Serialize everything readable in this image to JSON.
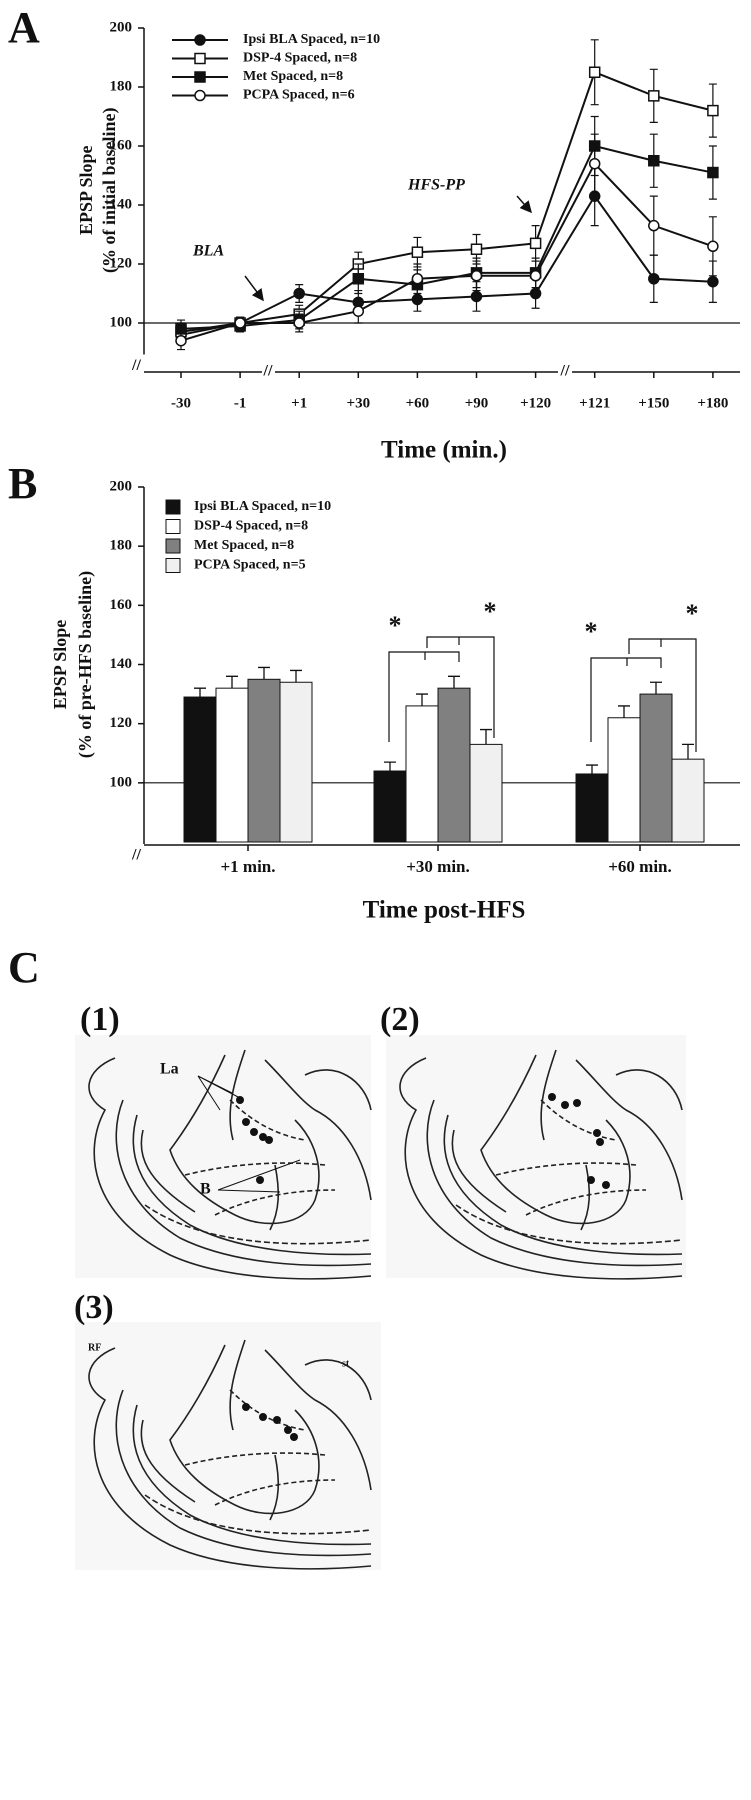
{
  "panels": {
    "a": "A",
    "b": "B",
    "c": "C"
  },
  "chart_data": [
    {
      "type": "line",
      "categories": [
        "-30",
        "-1",
        "+1",
        "+30",
        "+60",
        "+90",
        "+120",
        "+121",
        "+150",
        "+180"
      ],
      "series": [
        {
          "name": "Ipsi BLA Spaced, n=10",
          "color": "#111111",
          "marker": "circle",
          "fill": "#111111",
          "values": [
            96,
            100,
            110,
            107,
            108,
            109,
            110,
            143,
            115,
            114
          ],
          "errors": [
            3,
            2,
            3,
            4,
            4,
            5,
            5,
            10,
            8,
            7
          ]
        },
        {
          "name": "DSP-4 Spaced, n=8",
          "color": "#111111",
          "marker": "square",
          "fill": "#ffffff",
          "values": [
            97,
            100,
            103,
            120,
            124,
            125,
            127,
            185,
            177,
            172
          ],
          "errors": [
            3,
            2,
            3,
            4,
            5,
            5,
            6,
            11,
            9,
            9
          ]
        },
        {
          "name": "Met Spaced, n=8",
          "color": "#111111",
          "marker": "square",
          "fill": "#111111",
          "values": [
            98,
            99,
            101,
            115,
            113,
            117,
            117,
            160,
            155,
            151
          ],
          "errors": [
            3,
            2,
            3,
            5,
            5,
            5,
            5,
            10,
            9,
            9
          ]
        },
        {
          "name": "PCPA Spaced, n=6",
          "color": "#111111",
          "marker": "circle",
          "fill": "#ffffff",
          "values": [
            94,
            100,
            100,
            104,
            115,
            116,
            116,
            154,
            133,
            126
          ],
          "errors": [
            3,
            2,
            3,
            4,
            5,
            5,
            5,
            10,
            10,
            10
          ]
        }
      ],
      "ylim": [
        90,
        200
      ],
      "yticks": [
        100,
        120,
        140,
        160,
        180,
        200
      ],
      "reference_line": 100,
      "ylabel": [
        "EPSP Slope",
        "(% of initial baseline)"
      ],
      "xlabel": "Time (min.)",
      "axis_break": "//",
      "annotations": [
        "BLA",
        "HFS-PP"
      ]
    },
    {
      "type": "bar",
      "categories": [
        "+1 min.",
        "+30 min.",
        "+60 min."
      ],
      "series": [
        {
          "name": "Ipsi BLA Spaced, n=10",
          "color": "#111111",
          "values": [
            129,
            104,
            103
          ],
          "errors": [
            3,
            3,
            3
          ]
        },
        {
          "name": "DSP-4 Spaced, n=8",
          "color": "#ffffff",
          "values": [
            132,
            126,
            122
          ],
          "errors": [
            4,
            4,
            4
          ]
        },
        {
          "name": "Met Spaced, n=8",
          "color": "#808080",
          "values": [
            135,
            132,
            130
          ],
          "errors": [
            4,
            4,
            4
          ]
        },
        {
          "name": "PCPA Spaced, n=5",
          "color": "#f0f0f0",
          "values": [
            134,
            113,
            108
          ],
          "errors": [
            4,
            5,
            5
          ]
        }
      ],
      "ylim": [
        80,
        200
      ],
      "yticks": [
        100,
        120,
        140,
        160,
        180,
        200
      ],
      "reference_line": 100,
      "ylabel": [
        "EPSP Slope",
        "(% of pre-HFS baseline)"
      ],
      "xlabel": "Time post-HFS",
      "axis_break": "//",
      "annotations": [
        "*",
        "*",
        "*",
        "*"
      ]
    }
  ],
  "histology": {
    "sections": [
      "(1)",
      "(2)",
      "(3)"
    ],
    "labels": {
      "la": "La",
      "b": "B",
      "rf": "RF",
      "st": "st"
    }
  }
}
